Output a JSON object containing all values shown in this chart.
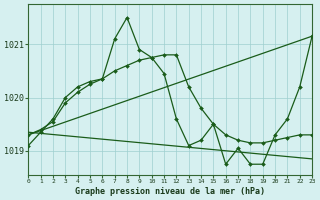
{
  "title": "Graphe pression niveau de la mer (hPa)",
  "background_color": "#d6f0f0",
  "grid_color": "#9ecfcf",
  "line_color": "#1a5c1a",
  "marker_color": "#1a5c1a",
  "ylim": [
    1018.55,
    1021.75
  ],
  "yticks": [
    1019,
    1020,
    1021
  ],
  "xlim": [
    0,
    23
  ],
  "xticks": [
    0,
    1,
    2,
    3,
    4,
    5,
    6,
    7,
    8,
    9,
    10,
    11,
    12,
    13,
    14,
    15,
    16,
    17,
    18,
    19,
    20,
    21,
    22,
    23
  ],
  "series": [
    {
      "x": [
        0,
        1,
        2,
        3,
        4,
        5,
        6,
        7,
        8,
        9,
        10,
        11,
        12,
        13,
        14,
        15,
        16,
        17,
        18,
        19,
        20,
        21,
        22,
        23
      ],
      "y": [
        1019.1,
        1019.35,
        1019.6,
        1020.0,
        1020.2,
        1020.3,
        1020.35,
        1021.1,
        1021.5,
        1020.9,
        1020.75,
        1020.45,
        1019.6,
        1019.1,
        1019.2,
        1019.5,
        1018.75,
        1019.05,
        1018.75,
        1018.75,
        1019.3,
        1019.6,
        1020.2,
        1021.15
      ]
    },
    {
      "x": [
        0,
        1,
        2,
        3,
        4,
        5,
        6,
        7,
        8,
        9,
        10,
        11,
        12,
        13,
        14,
        15,
        16,
        17,
        18,
        19,
        20,
        21,
        22,
        23
      ],
      "y": [
        1019.3,
        1019.4,
        1019.55,
        1019.9,
        1020.1,
        1020.25,
        1020.35,
        1020.5,
        1020.6,
        1020.7,
        1020.75,
        1020.8,
        1020.8,
        1020.2,
        1019.8,
        1019.5,
        1019.3,
        1019.2,
        1019.15,
        1019.15,
        1019.2,
        1019.25,
        1019.3,
        1019.3
      ]
    },
    {
      "x": [
        0,
        23
      ],
      "y": [
        1019.35,
        1018.85
      ]
    },
    {
      "x": [
        0,
        23
      ],
      "y": [
        1019.3,
        1021.15
      ]
    }
  ]
}
